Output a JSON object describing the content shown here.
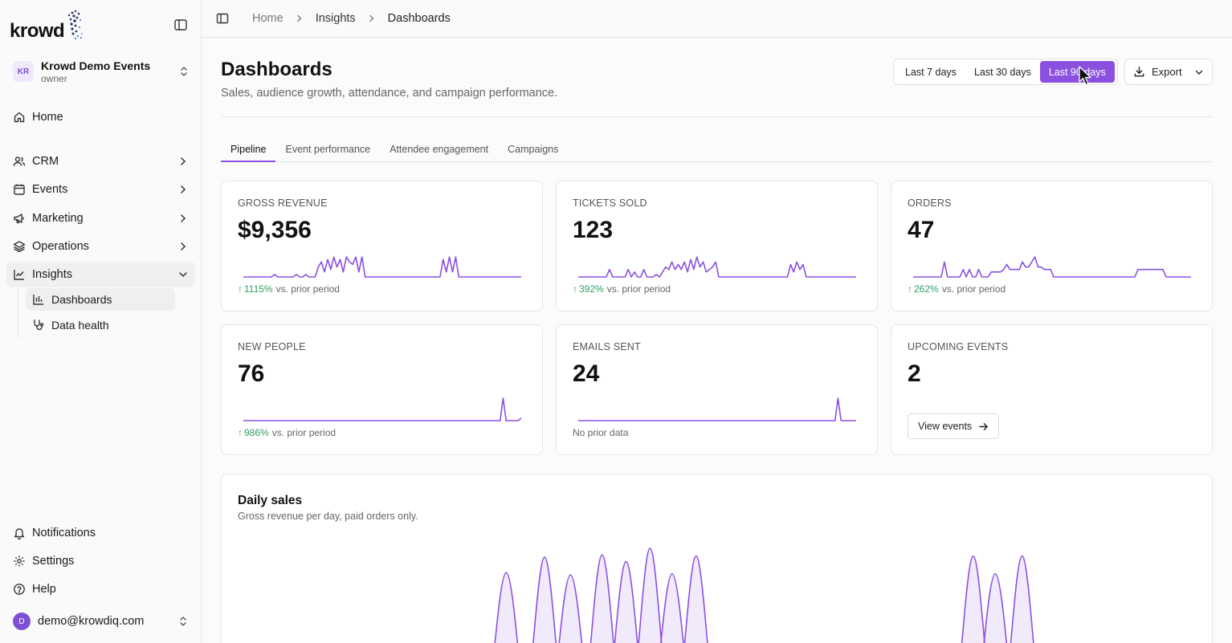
{
  "app": {
    "logo_text": "krowd"
  },
  "org": {
    "initials": "KR",
    "name": "Krowd Demo Events",
    "role": "owner"
  },
  "nav": {
    "home": "Home",
    "crm": "CRM",
    "events": "Events",
    "marketing": "Marketing",
    "operations": "Operations",
    "insights": "Insights",
    "sub": {
      "dashboards": "Dashboards",
      "data_health": "Data health"
    },
    "notifications": "Notifications",
    "settings": "Settings",
    "help": "Help"
  },
  "user": {
    "initial": "D",
    "email": "demo@krowdiq.com"
  },
  "breadcrumb": [
    "Home",
    "Insights",
    "Dashboards"
  ],
  "page": {
    "title": "Dashboards",
    "subtitle": "Sales, audience growth, attendance, and campaign performance."
  },
  "range": {
    "options": [
      "Last 7 days",
      "Last 30 days",
      "Last 90 days"
    ],
    "selected": "Last 90 days"
  },
  "export_label": "Export",
  "tabs": [
    "Pipeline",
    "Event performance",
    "Attendee engagement",
    "Campaigns"
  ],
  "selected_tab": "Pipeline",
  "kpis": [
    {
      "label": "GROSS REVENUE",
      "value": "$9,356",
      "delta_pct": "1115%",
      "delta_text": "vs. prior period"
    },
    {
      "label": "TICKETS SOLD",
      "value": "123",
      "delta_pct": "392%",
      "delta_text": "vs. prior period"
    },
    {
      "label": "ORDERS",
      "value": "47",
      "delta_pct": "262%",
      "delta_text": "vs. prior period"
    },
    {
      "label": "NEW PEOPLE",
      "value": "76",
      "delta_pct": "986%",
      "delta_text": "vs. prior period"
    },
    {
      "label": "EMAILS SENT",
      "value": "24",
      "delta_text": "No prior data"
    },
    {
      "label": "UPCOMING EVENTS",
      "value": "2",
      "button": "View events"
    }
  ],
  "daily_sales": {
    "title": "Daily sales",
    "subtitle": "Gross revenue per day, paid orders only."
  },
  "colors": {
    "accent": "#8b50e0",
    "positive": "#2f9e64"
  },
  "chart_data": [
    {
      "type": "line",
      "name": "Gross revenue sparkline",
      "values": [
        0,
        0,
        0,
        0,
        0,
        0,
        0,
        0,
        0,
        0,
        1,
        0,
        0,
        0,
        0,
        0,
        0,
        1,
        0,
        0,
        1,
        0,
        0,
        0,
        4,
        6,
        2,
        7,
        3,
        8,
        4,
        7,
        2,
        8,
        6,
        5,
        8,
        2,
        8,
        0,
        0,
        0,
        0,
        0,
        0,
        0,
        0,
        0,
        0,
        0,
        0,
        0,
        0,
        0,
        0,
        0,
        0,
        0,
        0,
        0,
        0,
        0,
        0,
        0,
        7,
        2,
        8,
        2,
        8,
        0,
        0,
        0,
        0,
        0,
        0,
        0,
        0,
        0,
        0,
        0,
        0,
        0,
        0,
        0,
        0,
        0,
        0,
        0,
        0,
        0
      ]
    },
    {
      "type": "line",
      "name": "Tickets sold sparkline",
      "values": [
        0,
        0,
        0,
        0,
        0,
        0,
        0,
        0,
        0,
        0,
        3,
        0,
        0,
        0,
        0,
        0,
        3,
        0,
        2,
        0,
        0,
        3,
        0,
        0,
        0,
        1,
        0,
        2,
        4,
        3,
        6,
        3,
        5,
        3,
        6,
        2,
        7,
        3,
        8,
        4,
        6,
        2,
        3,
        4,
        6,
        0,
        0,
        0,
        0,
        0,
        0,
        0,
        0,
        0,
        0,
        0,
        0,
        0,
        0,
        0,
        0,
        0,
        0,
        0,
        0,
        0,
        0,
        0,
        5,
        2,
        6,
        3,
        5,
        0,
        0,
        0,
        0,
        0,
        0,
        0,
        0,
        0,
        0,
        0,
        0,
        0,
        0,
        0,
        0,
        0
      ]
    },
    {
      "type": "line",
      "name": "Orders sparkline",
      "values": [
        0,
        0,
        0,
        0,
        0,
        0,
        0,
        0,
        0,
        0,
        6,
        0,
        0,
        0,
        0,
        0,
        3,
        0,
        3,
        0,
        0,
        3,
        0,
        0,
        0,
        2,
        2,
        2,
        2,
        3,
        5,
        3,
        3,
        3,
        3,
        6,
        4,
        4,
        6,
        8,
        4,
        4,
        3,
        3,
        3,
        0,
        0,
        0,
        0,
        0,
        0,
        0,
        0,
        0,
        0,
        0,
        0,
        0,
        0,
        0,
        0,
        0,
        0,
        0,
        0,
        0,
        0,
        0,
        0,
        0,
        0,
        0,
        3,
        3,
        3,
        3,
        3,
        3,
        3,
        3,
        3,
        0,
        0,
        0,
        0,
        0,
        0,
        0,
        0,
        0
      ]
    },
    {
      "type": "line",
      "name": "New people sparkline",
      "values": [
        0,
        0,
        0,
        0,
        0,
        0,
        0,
        0,
        0,
        0,
        0,
        0,
        0,
        0,
        0,
        0,
        0,
        0,
        0,
        0,
        0,
        0,
        0,
        0,
        0,
        0,
        0,
        0,
        0,
        0,
        0,
        0,
        0,
        0,
        0,
        0,
        0,
        0,
        0,
        0,
        0,
        0,
        0,
        0,
        0,
        0,
        0,
        0,
        0,
        0,
        0,
        0,
        0,
        0,
        0,
        0,
        0,
        0,
        0,
        0,
        0,
        0,
        0,
        0,
        0,
        0,
        0,
        0,
        0,
        0,
        0,
        0,
        0,
        0,
        0,
        0,
        0,
        0,
        0,
        0,
        0,
        0,
        0,
        0,
        0,
        0,
        9,
        0,
        0,
        0,
        0,
        0,
        1
      ]
    },
    {
      "type": "line",
      "name": "Emails sent sparkline",
      "values": [
        0,
        0,
        0,
        0,
        0,
        0,
        0,
        0,
        0,
        0,
        0,
        0,
        0,
        0,
        0,
        0,
        0,
        0,
        0,
        0,
        0,
        0,
        0,
        0,
        0,
        0,
        0,
        0,
        0,
        0,
        0,
        0,
        0,
        0,
        0,
        0,
        0,
        0,
        0,
        0,
        0,
        0,
        0,
        0,
        0,
        0,
        0,
        0,
        0,
        0,
        0,
        0,
        0,
        0,
        0,
        0,
        0,
        0,
        0,
        0,
        0,
        0,
        0,
        0,
        0,
        0,
        0,
        0,
        0,
        0,
        0,
        0,
        0,
        0,
        0,
        0,
        0,
        0,
        0,
        0,
        0,
        0,
        0,
        0,
        0,
        0,
        9,
        0,
        0,
        0,
        0,
        0,
        0
      ]
    },
    {
      "type": "area",
      "title": "Daily sales",
      "peaks": [
        {
          "x": 0.28,
          "h": 0.78
        },
        {
          "x": 0.32,
          "h": 0.92
        },
        {
          "x": 0.347,
          "h": 0.76
        },
        {
          "x": 0.38,
          "h": 0.94
        },
        {
          "x": 0.405,
          "h": 0.88
        },
        {
          "x": 0.43,
          "h": 1.0
        },
        {
          "x": 0.453,
          "h": 0.77
        },
        {
          "x": 0.478,
          "h": 0.93
        },
        {
          "x": 0.767,
          "h": 0.93
        },
        {
          "x": 0.79,
          "h": 0.77
        },
        {
          "x": 0.818,
          "h": 0.93
        }
      ]
    }
  ]
}
